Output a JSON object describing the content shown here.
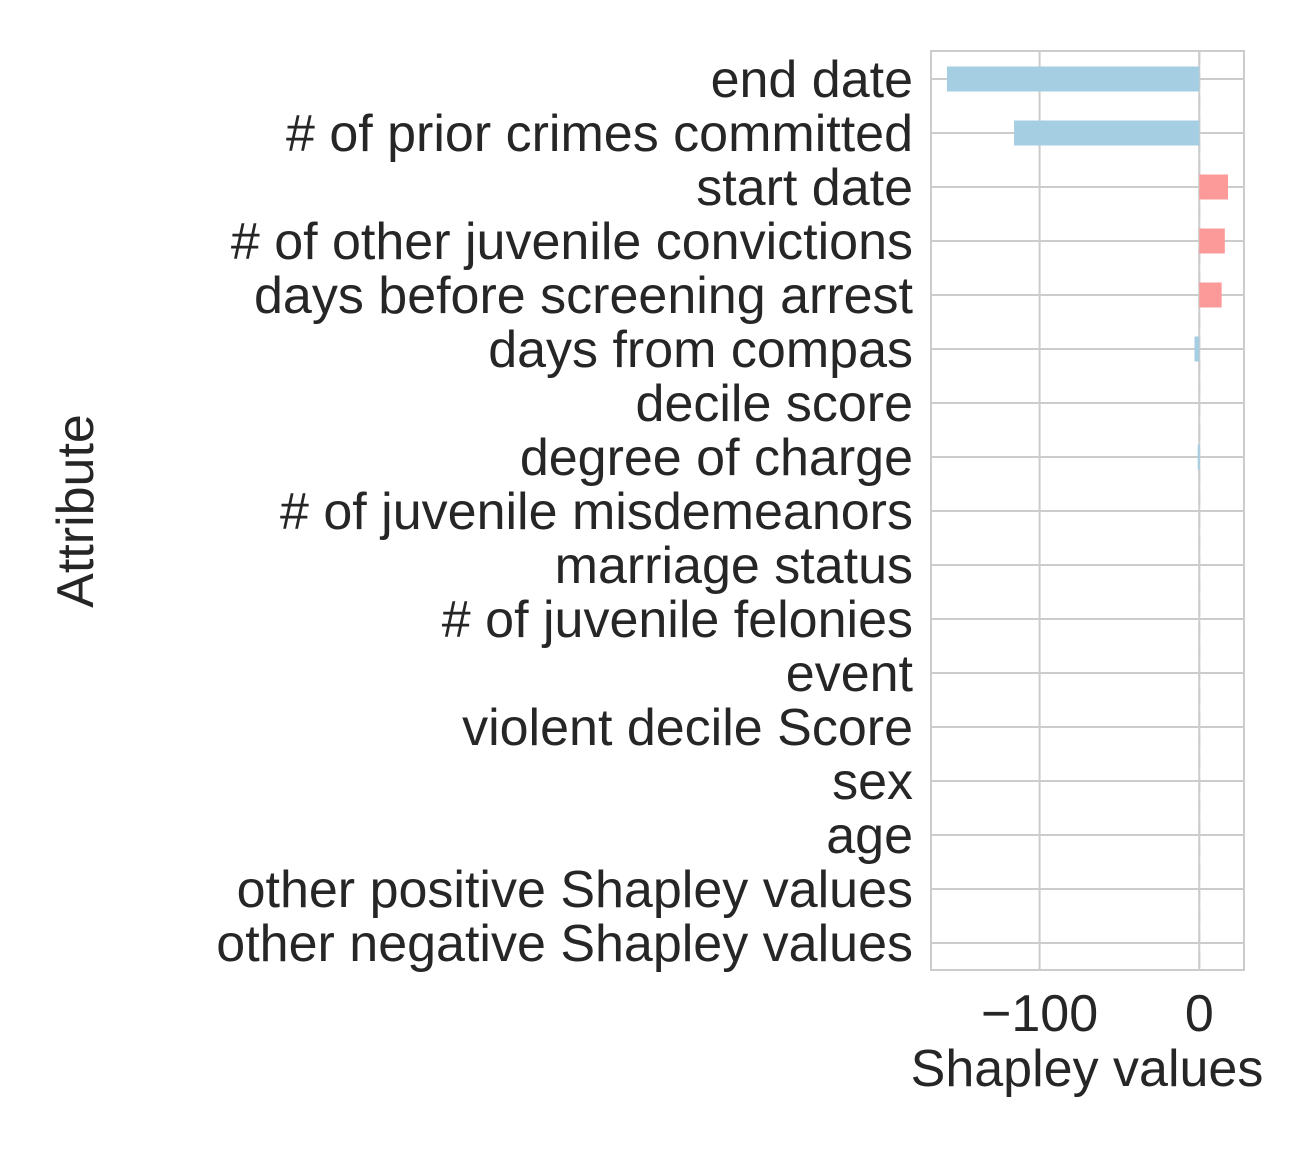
{
  "chart_data": {
    "type": "bar",
    "orientation": "horizontal",
    "xlabel": "Shapley values",
    "ylabel": "Attribute",
    "xlim": [
      -168,
      28
    ],
    "xticks": [
      -100,
      0
    ],
    "xtick_labels": [
      "−100",
      "0"
    ],
    "grid": true,
    "reference_line": {
      "x": 0,
      "style": "dashed"
    },
    "colors": {
      "negative": "#a6cee3",
      "positive": "#fb9a99",
      "grid": "#cccccc",
      "axis": "#cccccc",
      "text": "#262626"
    },
    "categories": [
      "end date",
      "# of prior crimes committed",
      "start date",
      "# of other juvenile convictions",
      "days before screening arrest",
      "days from compas",
      "decile score",
      "degree of charge",
      "# of juvenile misdemeanors",
      "marriage status",
      "# of juvenile felonies",
      "event",
      "violent decile Score",
      "sex",
      "age",
      "other positive Shapley values",
      "other negative Shapley values"
    ],
    "values": [
      -158,
      -116,
      18,
      16,
      14,
      -3,
      0,
      -1,
      0,
      0,
      0,
      0,
      0,
      0,
      0,
      0,
      0
    ]
  }
}
